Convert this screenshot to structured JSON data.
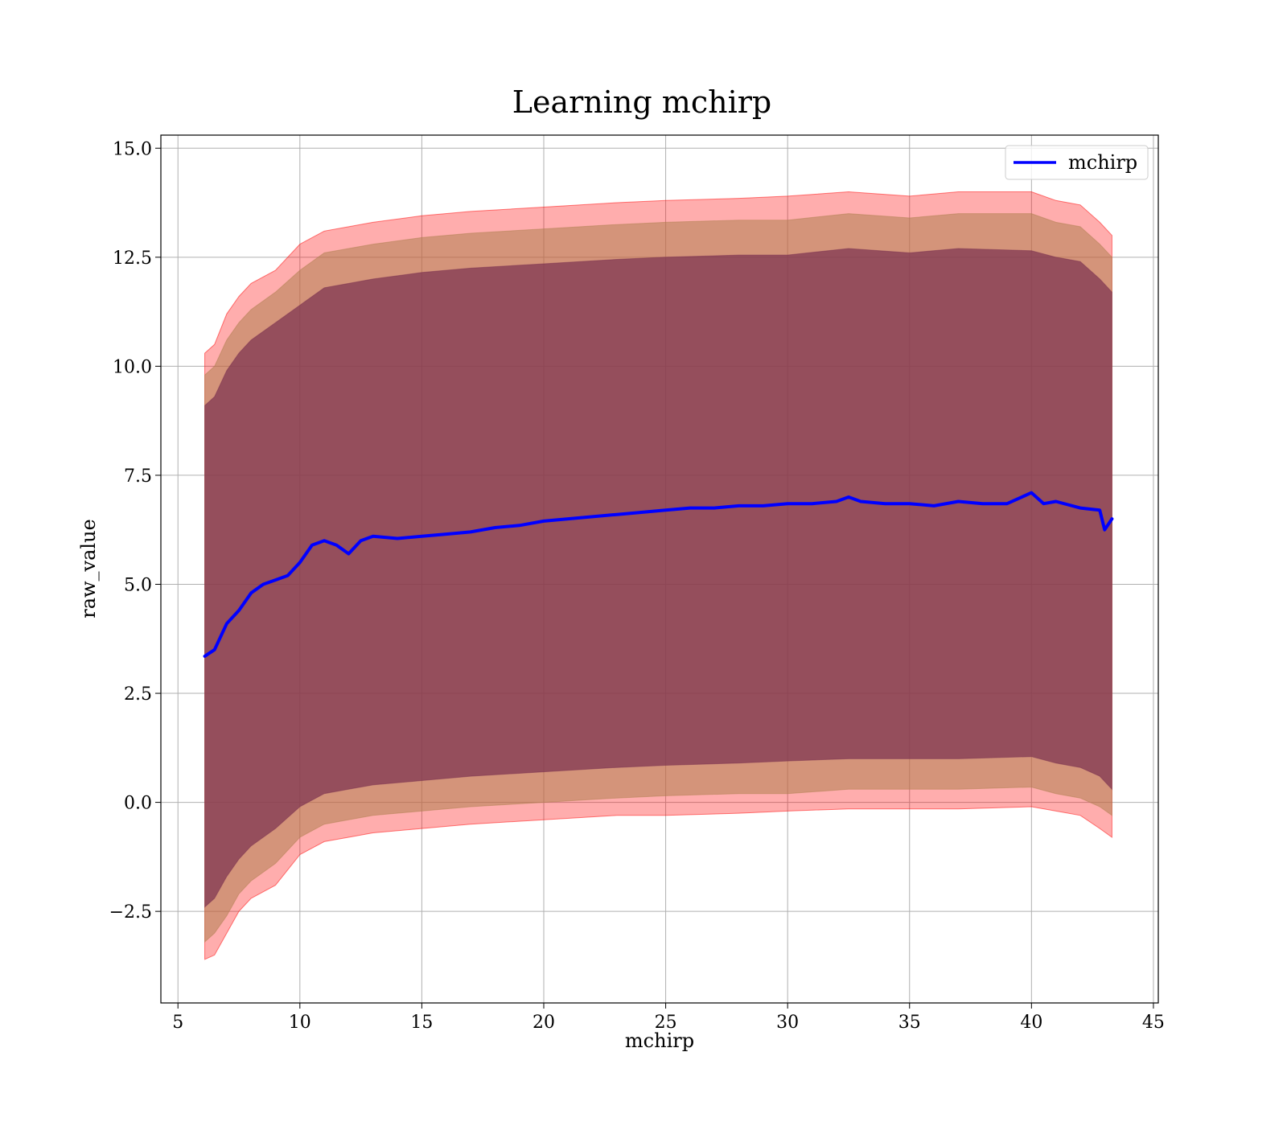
{
  "chart_data": {
    "type": "line",
    "title": "Learning mchirp",
    "xlabel": "mchirp",
    "ylabel": "raw_value",
    "xlim": [
      4.3,
      45.2
    ],
    "ylim": [
      -4.6,
      15.3
    ],
    "x_ticks": [
      5,
      10,
      15,
      20,
      25,
      30,
      35,
      40,
      45
    ],
    "x_tick_labels": [
      "5",
      "10",
      "15",
      "20",
      "25",
      "30",
      "35",
      "40",
      "45"
    ],
    "y_ticks": [
      -2.5,
      0.0,
      2.5,
      5.0,
      7.5,
      10.0,
      12.5,
      15.0
    ],
    "y_tick_labels": [
      "−2.5",
      "0.0",
      "2.5",
      "5.0",
      "7.5",
      "10.0",
      "12.5",
      "15.0"
    ],
    "grid": true,
    "legend_position": "top-right",
    "series": [
      {
        "name": "mchirp",
        "color": "#0000ff",
        "x": [
          6.1,
          6.5,
          7.0,
          7.5,
          8.0,
          8.5,
          9.0,
          9.5,
          10.0,
          10.5,
          11.0,
          11.5,
          12.0,
          12.5,
          13.0,
          14.0,
          15.0,
          16.0,
          17.0,
          18.0,
          19.0,
          20.0,
          21.0,
          22.0,
          23.0,
          24.0,
          25.0,
          26.0,
          27.0,
          28.0,
          29.0,
          30.0,
          31.0,
          32.0,
          32.5,
          33.0,
          34.0,
          35.0,
          36.0,
          37.0,
          38.0,
          39.0,
          40.0,
          40.5,
          41.0,
          42.0,
          42.8,
          43.0,
          43.3
        ],
        "y": [
          3.35,
          3.5,
          4.1,
          4.4,
          4.8,
          5.0,
          5.1,
          5.2,
          5.5,
          5.9,
          6.0,
          5.9,
          5.7,
          6.0,
          6.1,
          6.05,
          6.1,
          6.15,
          6.2,
          6.3,
          6.35,
          6.45,
          6.5,
          6.55,
          6.6,
          6.65,
          6.7,
          6.75,
          6.75,
          6.8,
          6.8,
          6.85,
          6.85,
          6.9,
          7.0,
          6.9,
          6.85,
          6.85,
          6.8,
          6.9,
          6.85,
          6.85,
          7.1,
          6.85,
          6.9,
          6.75,
          6.7,
          6.25,
          6.5
        ]
      },
      {
        "name": "",
        "color": "#ff0000",
        "style": "band",
        "x": [
          6.1,
          6.5,
          7.0,
          7.5,
          8.0,
          9.0,
          10.0,
          11.0,
          12.0,
          13.0,
          15.0,
          17.0,
          20.0,
          23.0,
          25.0,
          28.0,
          30.0,
          32.5,
          35.0,
          37.0,
          40.0,
          41.0,
          42.0,
          42.8,
          43.3
        ],
        "lower": [
          -3.6,
          -3.5,
          -3.0,
          -2.5,
          -2.2,
          -1.9,
          -1.2,
          -0.9,
          -0.8,
          -0.7,
          -0.6,
          -0.5,
          -0.4,
          -0.3,
          -0.3,
          -0.25,
          -0.2,
          -0.15,
          -0.15,
          -0.15,
          -0.1,
          -0.2,
          -0.3,
          -0.6,
          -0.8
        ],
        "upper": [
          10.3,
          10.5,
          11.2,
          11.6,
          11.9,
          12.2,
          12.8,
          13.1,
          13.2,
          13.3,
          13.45,
          13.55,
          13.65,
          13.75,
          13.8,
          13.85,
          13.9,
          14.0,
          13.9,
          14.0,
          14.0,
          13.8,
          13.7,
          13.3,
          13.0
        ]
      },
      {
        "name": "",
        "color": "#b08050",
        "style": "band",
        "x": [
          6.1,
          6.5,
          7.0,
          7.5,
          8.0,
          9.0,
          10.0,
          11.0,
          12.0,
          13.0,
          15.0,
          17.0,
          20.0,
          23.0,
          25.0,
          28.0,
          30.0,
          32.5,
          35.0,
          37.0,
          40.0,
          41.0,
          42.0,
          42.8,
          43.3
        ],
        "lower": [
          -3.2,
          -3.0,
          -2.6,
          -2.1,
          -1.8,
          -1.4,
          -0.8,
          -0.5,
          -0.4,
          -0.3,
          -0.2,
          -0.1,
          0.0,
          0.1,
          0.15,
          0.2,
          0.2,
          0.3,
          0.3,
          0.3,
          0.35,
          0.2,
          0.1,
          -0.1,
          -0.3
        ],
        "upper": [
          9.8,
          10.0,
          10.6,
          11.0,
          11.3,
          11.7,
          12.2,
          12.6,
          12.7,
          12.8,
          12.95,
          13.05,
          13.15,
          13.25,
          13.3,
          13.35,
          13.35,
          13.5,
          13.4,
          13.5,
          13.5,
          13.3,
          13.2,
          12.8,
          12.5
        ]
      },
      {
        "name": "",
        "color": "#7a3050",
        "style": "band",
        "x": [
          6.1,
          6.5,
          7.0,
          7.5,
          8.0,
          9.0,
          10.0,
          11.0,
          12.0,
          13.0,
          15.0,
          17.0,
          20.0,
          23.0,
          25.0,
          28.0,
          30.0,
          32.5,
          35.0,
          37.0,
          40.0,
          41.0,
          42.0,
          42.8,
          43.3
        ],
        "lower": [
          -2.4,
          -2.2,
          -1.7,
          -1.3,
          -1.0,
          -0.6,
          -0.1,
          0.2,
          0.3,
          0.4,
          0.5,
          0.6,
          0.7,
          0.8,
          0.85,
          0.9,
          0.95,
          1.0,
          1.0,
          1.0,
          1.05,
          0.9,
          0.8,
          0.6,
          0.3
        ],
        "upper": [
          9.1,
          9.3,
          9.9,
          10.3,
          10.6,
          11.0,
          11.4,
          11.8,
          11.9,
          12.0,
          12.15,
          12.25,
          12.35,
          12.45,
          12.5,
          12.55,
          12.55,
          12.7,
          12.6,
          12.7,
          12.65,
          12.5,
          12.4,
          12.0,
          11.7
        ]
      }
    ]
  }
}
